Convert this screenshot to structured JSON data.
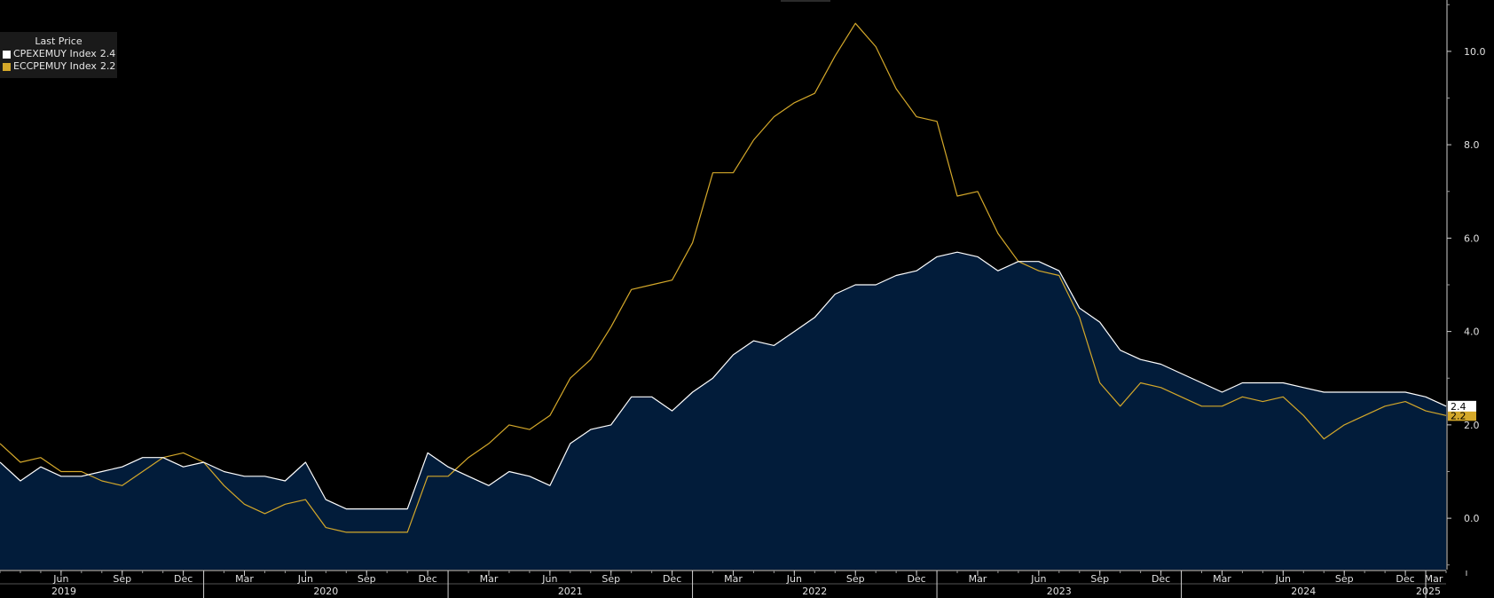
{
  "legend": {
    "title": "Last Price",
    "items": [
      {
        "name": "CPEXEMUY Index",
        "value": "2.4",
        "color": "#ffffff"
      },
      {
        "name": "ECCPEMUY Index",
        "value": "2.2",
        "color": "#d4a82a"
      }
    ]
  },
  "chart_data": {
    "type": "area",
    "ylim": [
      -1.1,
      11.1
    ],
    "yticks": [
      "0.0",
      "2.0",
      "4.0",
      "6.0",
      "8.0",
      "10.0"
    ],
    "x_month_ticks": [
      "Jun",
      "Sep",
      "Dec",
      "Mar",
      "Jun",
      "Sep",
      "Dec",
      "Mar",
      "Jun",
      "Sep",
      "Dec",
      "Mar",
      "Jun",
      "Sep",
      "Dec",
      "Mar",
      "Jun",
      "Sep",
      "Dec",
      "Mar",
      "Jun",
      "Sep",
      "Dec",
      "Mar"
    ],
    "x_year_labels": [
      "2019",
      "2020",
      "2021",
      "2022",
      "2023",
      "2024",
      "2025"
    ],
    "x_start": "2019-03",
    "x_end": "2025-03",
    "colors": {
      "area_fill": "#021c3a",
      "core_line": "#ffffff",
      "headline_line": "#d4a82a",
      "background": "#000000"
    },
    "series": [
      {
        "name": "CPEXEMUY Index",
        "last": "2.4",
        "values": [
          1.2,
          0.8,
          1.1,
          0.9,
          0.9,
          1.0,
          1.1,
          1.3,
          1.3,
          1.1,
          1.2,
          1.0,
          0.9,
          0.9,
          0.8,
          1.2,
          0.4,
          0.2,
          0.2,
          0.2,
          0.2,
          1.4,
          1.1,
          0.9,
          0.7,
          1.0,
          0.9,
          0.7,
          1.6,
          1.9,
          2.0,
          2.6,
          2.6,
          2.3,
          2.7,
          3.0,
          3.5,
          3.8,
          3.7,
          4.0,
          4.3,
          4.8,
          5.0,
          5.0,
          5.2,
          5.3,
          5.6,
          5.7,
          5.6,
          5.3,
          5.5,
          5.5,
          5.3,
          4.5,
          4.2,
          3.6,
          3.4,
          3.3,
          3.1,
          2.9,
          2.7,
          2.9,
          2.9,
          2.9,
          2.8,
          2.7,
          2.7,
          2.7,
          2.7,
          2.7,
          2.6,
          2.4
        ]
      },
      {
        "name": "ECCPEMUY Index",
        "last": "2.2",
        "values": [
          1.6,
          1.2,
          1.3,
          1.0,
          1.0,
          0.8,
          0.7,
          1.0,
          1.3,
          1.4,
          1.2,
          0.7,
          0.3,
          0.1,
          0.3,
          0.4,
          -0.2,
          -0.3,
          -0.3,
          -0.3,
          -0.3,
          0.9,
          0.9,
          1.3,
          1.6,
          2.0,
          1.9,
          2.2,
          3.0,
          3.4,
          4.1,
          4.9,
          5.0,
          5.1,
          5.9,
          7.4,
          7.4,
          8.1,
          8.6,
          8.9,
          9.1,
          9.9,
          10.6,
          10.1,
          9.2,
          8.6,
          8.5,
          6.9,
          7.0,
          6.1,
          5.5,
          5.3,
          5.2,
          4.3,
          2.9,
          2.4,
          2.9,
          2.8,
          2.6,
          2.4,
          2.4,
          2.6,
          2.5,
          2.6,
          2.2,
          1.7,
          2.0,
          2.2,
          2.4,
          2.5,
          2.3,
          2.2
        ]
      }
    ]
  }
}
